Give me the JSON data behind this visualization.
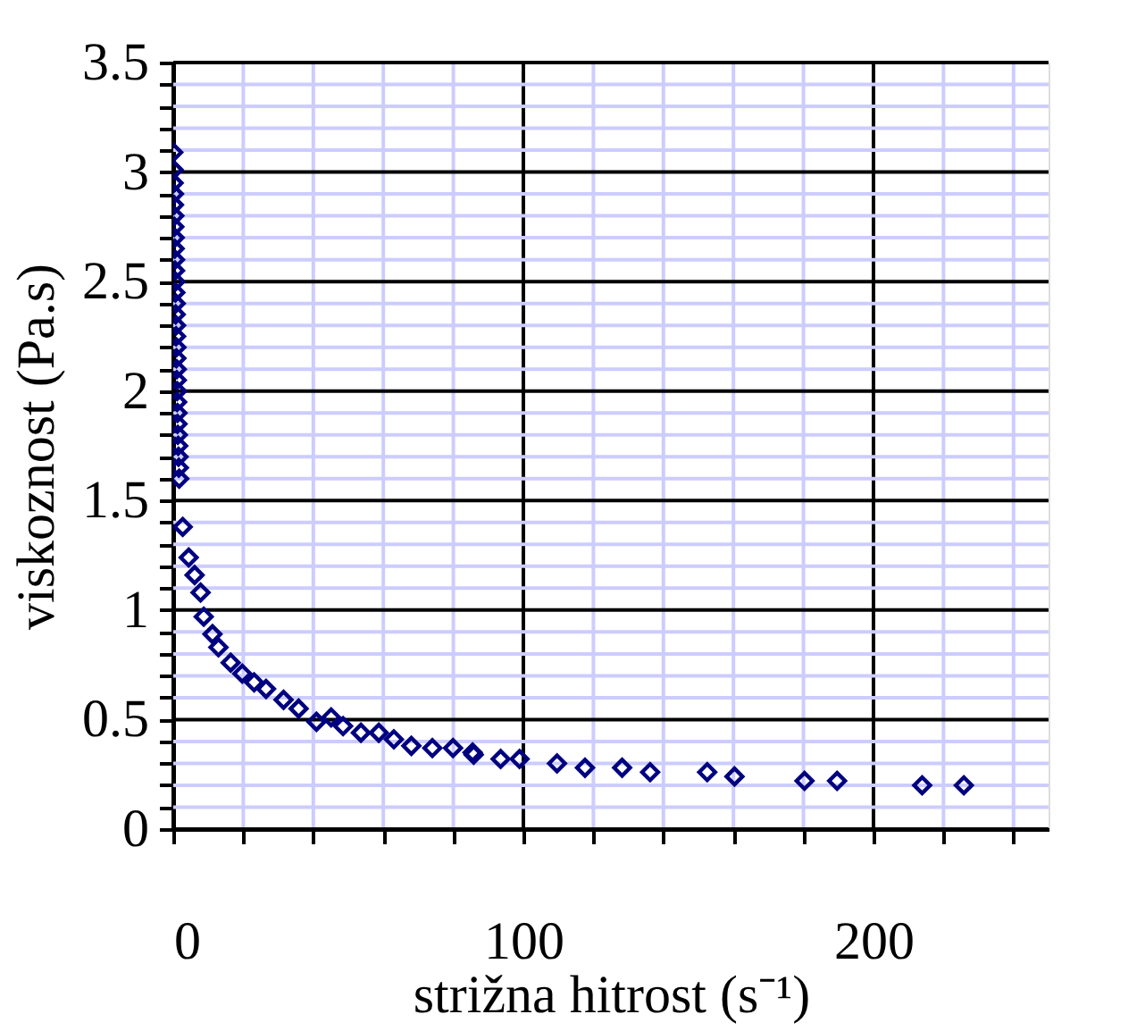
{
  "chart_data": {
    "type": "scatter",
    "xlabel": "strižna hitrost (s⁻¹)",
    "ylabel": "viskoznost (Pa.s)",
    "xlim": [
      0,
      250
    ],
    "ylim": [
      0,
      3.5
    ],
    "xticks": [
      0,
      {
        "value": 20,
        "label": null
      },
      {
        "value": 40,
        "label": null
      },
      {
        "value": 60,
        "label": null
      },
      {
        "value": 80,
        "label": null
      },
      100,
      {
        "value": 120,
        "label": null
      },
      {
        "value": 140,
        "label": null
      },
      {
        "value": 160,
        "label": null
      },
      {
        "value": 180,
        "label": null
      },
      200,
      {
        "value": 220,
        "label": null
      },
      {
        "value": 240,
        "label": null
      }
    ],
    "yticks": [
      0,
      {
        "value": 0.1,
        "label": null
      },
      {
        "value": 0.2,
        "label": null
      },
      {
        "value": 0.3,
        "label": null
      },
      {
        "value": 0.4,
        "label": null
      },
      0.5,
      {
        "value": 0.6,
        "label": null
      },
      {
        "value": 0.7,
        "label": null
      },
      {
        "value": 0.8,
        "label": null
      },
      {
        "value": 0.9,
        "label": null
      },
      1,
      {
        "value": 1.1,
        "label": null
      },
      {
        "value": 1.2,
        "label": null
      },
      {
        "value": 1.3,
        "label": null
      },
      {
        "value": 1.4,
        "label": null
      },
      1.5,
      {
        "value": 1.6,
        "label": null
      },
      {
        "value": 1.7,
        "label": null
      },
      {
        "value": 1.8,
        "label": null
      },
      {
        "value": 1.9,
        "label": null
      },
      2,
      {
        "value": 2.1,
        "label": null
      },
      {
        "value": 2.2,
        "label": null
      },
      {
        "value": 2.3,
        "label": null
      },
      {
        "value": 2.4,
        "label": null
      },
      2.5,
      {
        "value": 2.6,
        "label": null
      },
      {
        "value": 2.7,
        "label": null
      },
      {
        "value": 2.8,
        "label": null
      },
      {
        "value": 2.9,
        "label": null
      },
      3,
      {
        "value": 3.1,
        "label": null
      },
      {
        "value": 3.2,
        "label": null
      },
      {
        "value": 3.3,
        "label": null
      },
      {
        "value": 3.4,
        "label": null
      },
      3.5
    ],
    "grid": true,
    "marker": "diamond",
    "series": [
      {
        "color": "#000080",
        "x": [
          0,
          0.1,
          0.1,
          0.2,
          0.2,
          0.3,
          0.3,
          0.4,
          0.4,
          0.5,
          0.5,
          0.6,
          0.6,
          0.7,
          0.7,
          0.8,
          0.8,
          0.9,
          0.9,
          1.0,
          1.0,
          1.1,
          1.1,
          1.2,
          1.2,
          1.3,
          1.4,
          1.5,
          1.6,
          1.7,
          2.7,
          4.4,
          6.1,
          7.8,
          8.7,
          11.2,
          12.9,
          16.4,
          19.7,
          23.1,
          26.5,
          31.5,
          35.8,
          40.9,
          45.1,
          48.5,
          53.6,
          58.7,
          63,
          68,
          74,
          79.9,
          85.5,
          85.8,
          93.5,
          98.9,
          109.6,
          117.6,
          128.2,
          136.2,
          152.5,
          160.3,
          180.3,
          189.6,
          213.9,
          225.8
        ],
        "values": [
          3.09,
          3.01,
          2.95,
          2.9,
          2.85,
          2.8,
          2.75,
          2.7,
          2.65,
          2.6,
          2.55,
          2.5,
          2.45,
          2.4,
          2.35,
          2.3,
          2.25,
          2.2,
          2.15,
          2.1,
          2.05,
          2.0,
          1.95,
          1.9,
          1.85,
          1.8,
          1.75,
          1.7,
          1.65,
          1.6,
          1.38,
          1.24,
          1.16,
          1.08,
          0.97,
          0.89,
          0.83,
          0.76,
          0.71,
          0.67,
          0.64,
          0.59,
          0.55,
          0.49,
          0.51,
          0.47,
          0.44,
          0.44,
          0.41,
          0.38,
          0.37,
          0.37,
          0.35,
          0.34,
          0.32,
          0.32,
          0.3,
          0.28,
          0.28,
          0.26,
          0.26,
          0.24,
          0.22,
          0.22,
          0.2,
          0.2
        ]
      }
    ]
  }
}
